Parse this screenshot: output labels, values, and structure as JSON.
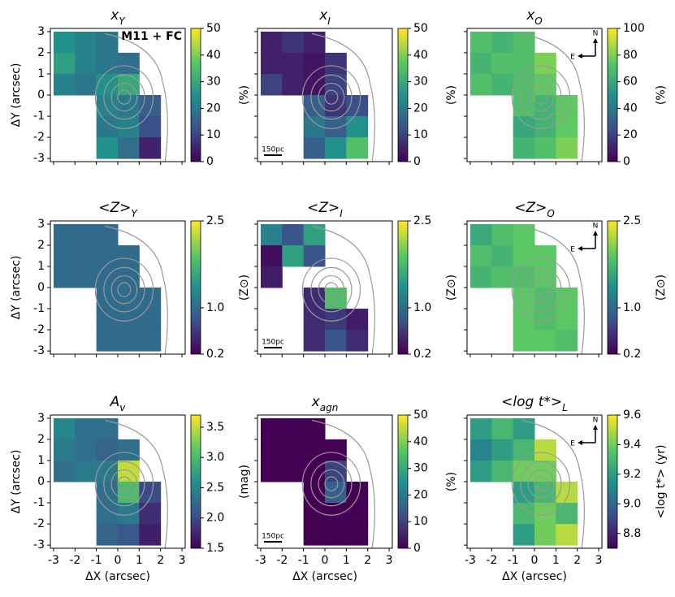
{
  "chart_data": [
    {
      "type": "heatmap",
      "title": "x",
      "title_subscript": "Y",
      "colormap": "viridis",
      "annotation": "M11 + FC",
      "ylabel": "ΔY (arcsec)",
      "x": [
        -2.5,
        -1.5,
        -0.5,
        0.5,
        1.5,
        2.5
      ],
      "y": [
        2.5,
        1.5,
        0.5,
        -0.5,
        -1.5,
        -2.5
      ],
      "values": [
        [
          25,
          22,
          20,
          null,
          null,
          null
        ],
        [
          28,
          22,
          20,
          18,
          null,
          null
        ],
        [
          22,
          20,
          25,
          30,
          null,
          null
        ],
        [
          null,
          null,
          22,
          20,
          15,
          null
        ],
        [
          null,
          null,
          20,
          22,
          12,
          null
        ],
        [
          null,
          null,
          25,
          18,
          5,
          null
        ]
      ],
      "xlim": [
        -3.15,
        3.15
      ],
      "ylim": [
        -3.15,
        3.15
      ],
      "xticks": [
        -3,
        -2,
        -1,
        0,
        1,
        2,
        3
      ],
      "yticks": [
        -3,
        -2,
        -1,
        0,
        1,
        2,
        3
      ],
      "clim": [
        0,
        50
      ],
      "cticks": [
        0,
        10,
        20,
        30,
        40,
        50
      ],
      "clabel": "(%)"
    },
    {
      "type": "heatmap",
      "title": "x",
      "title_subscript": "I",
      "colormap": "viridis",
      "scalebar": "150pc",
      "x": [
        -2.5,
        -1.5,
        -0.5,
        0.5,
        1.5,
        2.5
      ],
      "y": [
        2.5,
        1.5,
        0.5,
        -0.5,
        -1.5,
        -2.5
      ],
      "values": [
        [
          5,
          8,
          5,
          null,
          null,
          null
        ],
        [
          5,
          5,
          3,
          8,
          null,
          null
        ],
        [
          10,
          5,
          3,
          10,
          null,
          null
        ],
        [
          null,
          null,
          15,
          8,
          12,
          null
        ],
        [
          null,
          null,
          20,
          15,
          25,
          null
        ],
        [
          null,
          null,
          15,
          25,
          35,
          null
        ]
      ],
      "xlim": [
        -3.15,
        3.15
      ],
      "ylim": [
        -3.15,
        3.15
      ],
      "xticks": [
        -3,
        -2,
        -1,
        0,
        1,
        2,
        3
      ],
      "yticks": [
        -3,
        -2,
        -1,
        0,
        1,
        2,
        3
      ],
      "clim": [
        0,
        50
      ],
      "cticks": [
        0,
        10,
        20,
        30,
        40,
        50
      ],
      "clabel": "(%)"
    },
    {
      "type": "heatmap",
      "title": "x",
      "title_subscript": "O",
      "colormap": "viridis",
      "compass": {
        "north": "N",
        "east": "E"
      },
      "x": [
        -2.5,
        -1.5,
        -0.5,
        0.5,
        1.5,
        2.5
      ],
      "y": [
        2.5,
        1.5,
        0.5,
        -0.5,
        -1.5,
        -2.5
      ],
      "values": [
        [
          70,
          65,
          70,
          null,
          null,
          null
        ],
        [
          65,
          70,
          70,
          80,
          null,
          null
        ],
        [
          70,
          65,
          70,
          75,
          null,
          null
        ],
        [
          null,
          null,
          70,
          65,
          75,
          null
        ],
        [
          null,
          null,
          60,
          65,
          75,
          null
        ],
        [
          null,
          null,
          65,
          70,
          80,
          null
        ]
      ],
      "xlim": [
        -3.15,
        3.15
      ],
      "ylim": [
        -3.15,
        3.15
      ],
      "xticks": [
        -3,
        -2,
        -1,
        0,
        1,
        2,
        3
      ],
      "yticks": [
        -3,
        -2,
        -1,
        0,
        1,
        2,
        3
      ],
      "clim": [
        0,
        100
      ],
      "cticks": [
        0,
        20,
        40,
        60,
        80,
        100
      ],
      "clabel": "(%)"
    },
    {
      "type": "heatmap",
      "title": "<Z>",
      "title_subscript": "Y",
      "colormap": "viridis",
      "ylabel": "ΔY (arcsec)",
      "x": [
        -2.5,
        -1.5,
        -0.5,
        0.5,
        1.5,
        2.5
      ],
      "y": [
        2.5,
        1.5,
        0.5,
        -0.5,
        -1.5,
        -2.5
      ],
      "values": [
        [
          1.0,
          1.0,
          1.0,
          null,
          null,
          null
        ],
        [
          1.0,
          1.0,
          1.0,
          1.0,
          null,
          null
        ],
        [
          1.0,
          1.0,
          1.0,
          1.0,
          null,
          null
        ],
        [
          null,
          null,
          1.0,
          1.0,
          1.0,
          null
        ],
        [
          null,
          null,
          1.0,
          1.0,
          1.0,
          null
        ],
        [
          null,
          null,
          1.0,
          1.0,
          1.0,
          null
        ]
      ],
      "xlim": [
        -3.15,
        3.15
      ],
      "ylim": [
        -3.15,
        3.15
      ],
      "xticks": [
        -3,
        -2,
        -1,
        0,
        1,
        2,
        3
      ],
      "yticks": [
        -3,
        -2,
        -1,
        0,
        1,
        2,
        3
      ],
      "clim": [
        0.2,
        2.5
      ],
      "cticks": [
        0.2,
        {
          "value": 1.0,
          "label": "1.0"
        },
        2.5
      ],
      "clabel": "(Z⊙)"
    },
    {
      "type": "heatmap",
      "title": "<Z>",
      "title_subscript": "I",
      "colormap": "viridis",
      "scalebar": "150pc",
      "x": [
        -2.5,
        -1.5,
        -0.5,
        0.5,
        1.5,
        2.5
      ],
      "y": [
        2.5,
        1.5,
        0.5,
        -0.5,
        -1.5,
        -2.5
      ],
      "values": [
        [
          1.2,
          0.8,
          1.5,
          null,
          null,
          null
        ],
        [
          0.3,
          1.5,
          0.8,
          null,
          null,
          null
        ],
        [
          0.4,
          null,
          null,
          null,
          null,
          null
        ],
        [
          null,
          null,
          0.5,
          1.8,
          null,
          null
        ],
        [
          null,
          null,
          0.5,
          0.6,
          0.4,
          null
        ],
        [
          null,
          null,
          0.5,
          0.8,
          0.5,
          null
        ]
      ],
      "xlim": [
        -3.15,
        3.15
      ],
      "ylim": [
        -3.15,
        3.15
      ],
      "xticks": [
        -3,
        -2,
        -1,
        0,
        1,
        2,
        3
      ],
      "yticks": [
        -3,
        -2,
        -1,
        0,
        1,
        2,
        3
      ],
      "clim": [
        0.2,
        2.5
      ],
      "cticks": [
        0.2,
        {
          "value": 1.0,
          "label": "1.0"
        },
        2.5
      ],
      "clabel": "(Z⊙)"
    },
    {
      "type": "heatmap",
      "title": "<Z>",
      "title_subscript": "O",
      "colormap": "viridis",
      "compass": {
        "north": "N",
        "east": "E"
      },
      "x": [
        -2.5,
        -1.5,
        -0.5,
        0.5,
        1.5,
        2.5
      ],
      "y": [
        2.5,
        1.5,
        0.5,
        -0.5,
        -1.5,
        -2.5
      ],
      "values": [
        [
          1.6,
          1.8,
          1.9,
          null,
          null,
          null
        ],
        [
          1.8,
          1.7,
          1.9,
          1.9,
          null,
          null
        ],
        [
          1.7,
          1.8,
          1.8,
          1.9,
          null,
          null
        ],
        [
          null,
          null,
          1.9,
          1.8,
          1.9,
          null
        ],
        [
          null,
          null,
          1.9,
          1.8,
          1.9,
          null
        ],
        [
          null,
          null,
          1.9,
          1.9,
          1.8,
          null
        ]
      ],
      "xlim": [
        -3.15,
        3.15
      ],
      "ylim": [
        -3.15,
        3.15
      ],
      "xticks": [
        -3,
        -2,
        -1,
        0,
        1,
        2,
        3
      ],
      "yticks": [
        -3,
        -2,
        -1,
        0,
        1,
        2,
        3
      ],
      "clim": [
        0.2,
        2.5
      ],
      "cticks": [
        0.2,
        {
          "value": 1.0,
          "label": "1.0"
        },
        2.5
      ],
      "clabel": "(Z⊙)"
    },
    {
      "type": "heatmap",
      "title": "A",
      "title_subscript": "v",
      "colormap": "viridis",
      "ylabel": "ΔY (arcsec)",
      "xlabel": "ΔX (arcsec)",
      "x": [
        -2.5,
        -1.5,
        -0.5,
        0.5,
        1.5,
        2.5
      ],
      "y": [
        2.5,
        1.5,
        0.5,
        -0.5,
        -1.5,
        -2.5
      ],
      "values": [
        [
          2.5,
          2.3,
          2.3,
          null,
          null,
          null
        ],
        [
          2.4,
          2.3,
          2.2,
          2.3,
          null,
          null
        ],
        [
          2.3,
          2.4,
          2.4,
          3.5,
          null,
          null
        ],
        [
          null,
          null,
          2.3,
          3.0,
          2.0,
          null
        ],
        [
          null,
          null,
          2.3,
          2.4,
          1.8,
          null
        ],
        [
          null,
          null,
          2.2,
          2.1,
          1.7,
          null
        ]
      ],
      "xlim": [
        -3.15,
        3.15
      ],
      "ylim": [
        -3.15,
        3.15
      ],
      "xticks": [
        -3,
        -2,
        -1,
        0,
        1,
        2,
        3
      ],
      "yticks": [
        -3,
        -2,
        -1,
        0,
        1,
        2,
        3
      ],
      "clim": [
        1.5,
        3.7
      ],
      "cticks": [
        1.5,
        {
          "value": 2.0,
          "label": "2.0"
        },
        2.5,
        {
          "value": 3.0,
          "label": "3.0"
        },
        3.5
      ],
      "clabel": "(mag)"
    },
    {
      "type": "heatmap",
      "title": "x",
      "title_subscript": "agn",
      "colormap": "viridis",
      "scalebar": "150pc",
      "xlabel": "ΔX (arcsec)",
      "x": [
        -2.5,
        -1.5,
        -0.5,
        0.5,
        1.5,
        2.5
      ],
      "y": [
        2.5,
        1.5,
        0.5,
        -0.5,
        -1.5,
        -2.5
      ],
      "values": [
        [
          0,
          0,
          0,
          null,
          null,
          null
        ],
        [
          0,
          0,
          0,
          0,
          null,
          null
        ],
        [
          0,
          0,
          0,
          10,
          null,
          null
        ],
        [
          null,
          null,
          0,
          15,
          0,
          null
        ],
        [
          null,
          null,
          0,
          0,
          0,
          null
        ],
        [
          null,
          null,
          0,
          0,
          0,
          null
        ]
      ],
      "xlim": [
        -3.15,
        3.15
      ],
      "ylim": [
        -3.15,
        3.15
      ],
      "xticks": [
        -3,
        -2,
        -1,
        0,
        1,
        2,
        3
      ],
      "yticks": [
        -3,
        -2,
        -1,
        0,
        1,
        2,
        3
      ],
      "clim": [
        0,
        50
      ],
      "cticks": [
        0,
        10,
        20,
        30,
        40,
        50
      ],
      "clabel": "(%)"
    },
    {
      "type": "heatmap",
      "title": "<log t*>",
      "title_subscript": "L",
      "colormap": "viridis",
      "compass": {
        "north": "N",
        "east": "E"
      },
      "xlabel": "ΔX (arcsec)",
      "x": [
        -2.5,
        -1.5,
        -0.5,
        0.5,
        1.5,
        2.5
      ],
      "y": [
        2.5,
        1.5,
        0.5,
        -0.5,
        -1.5,
        -2.5
      ],
      "values": [
        [
          9.2,
          9.3,
          9.2,
          null,
          null,
          null
        ],
        [
          9.1,
          9.2,
          9.3,
          9.5,
          null,
          null
        ],
        [
          9.2,
          9.3,
          9.4,
          9.4,
          null,
          null
        ],
        [
          null,
          null,
          9.2,
          9.3,
          9.5,
          null
        ],
        [
          null,
          null,
          9.3,
          9.4,
          9.3,
          null
        ],
        [
          null,
          null,
          9.2,
          9.4,
          9.5,
          null
        ]
      ],
      "xlim": [
        -3.15,
        3.15
      ],
      "ylim": [
        -3.15,
        3.15
      ],
      "xticks": [
        -3,
        -2,
        -1,
        0,
        1,
        2,
        3
      ],
      "yticks": [
        -3,
        -2,
        -1,
        0,
        1,
        2,
        3
      ],
      "clim": [
        8.7,
        9.6
      ],
      "cticks": [
        8.8,
        {
          "value": 9.0,
          "label": "9.0"
        },
        9.2,
        9.4,
        9.6
      ],
      "clabel": "<log t*> (yr)"
    }
  ]
}
